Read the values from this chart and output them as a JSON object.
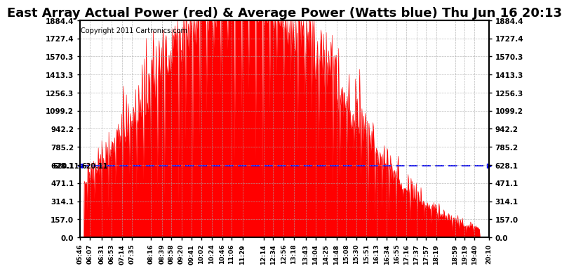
{
  "title": "East Array Actual Power (red) & Average Power (Watts blue) Thu Jun 16 20:13",
  "copyright": "Copyright 2011 Cartronics.com",
  "avg_power": 620.11,
  "ymax": 1884.4,
  "ymin": 0.0,
  "yticks": [
    0.0,
    157.0,
    314.1,
    471.1,
    628.1,
    785.2,
    942.2,
    1099.2,
    1256.3,
    1413.3,
    1570.3,
    1727.4,
    1884.4
  ],
  "ytick_labels": [
    "0.0",
    "157.0",
    "314.1",
    "471.1",
    "628.1",
    "785.2",
    "942.2",
    "1099.2",
    "1256.3",
    "1413.3",
    "1570.3",
    "1727.4",
    "1884.4"
  ],
  "xtick_labels": [
    "05:46",
    "06:07",
    "06:31",
    "06:53",
    "07:14",
    "07:35",
    "08:16",
    "08:39",
    "08:58",
    "09:20",
    "09:41",
    "10:02",
    "10:24",
    "10:46",
    "11:06",
    "11:29",
    "12:14",
    "12:34",
    "12:56",
    "13:18",
    "13:43",
    "14:04",
    "14:25",
    "14:48",
    "15:08",
    "15:30",
    "15:51",
    "16:13",
    "16:34",
    "16:55",
    "17:16",
    "17:37",
    "17:57",
    "18:19",
    "18:59",
    "19:19",
    "19:40",
    "20:10"
  ],
  "area_color": "#FF0000",
  "line_color": "#0000FF",
  "title_fontsize": 13,
  "bg_color": "#FFFFFF",
  "grid_color": "#AAAAAA"
}
